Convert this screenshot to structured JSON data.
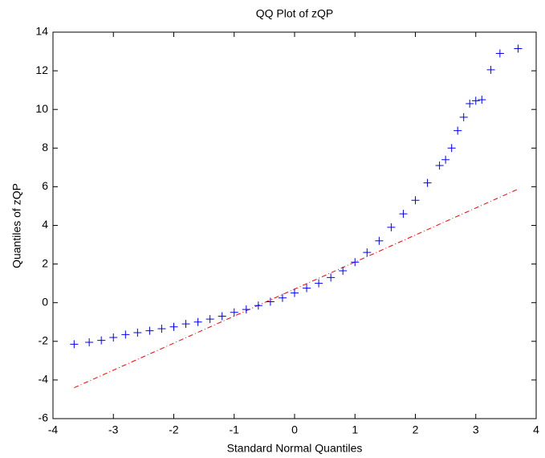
{
  "chart_data": {
    "type": "scatter",
    "title": "QQ Plot of zQP",
    "x_label": "Standard Normal Quantiles",
    "y_label": "Quantiles of zQP",
    "xlim": [
      -4,
      4
    ],
    "xticks": [
      -4,
      -3,
      -2,
      -1,
      0,
      1,
      2,
      3,
      4
    ],
    "ylim": [
      -6,
      14
    ],
    "yticks": [
      -6,
      -4,
      -2,
      0,
      2,
      4,
      6,
      8,
      10,
      12,
      14
    ],
    "grid": false,
    "series": [
      {
        "name": "zQP",
        "color": "#0000ff",
        "x": [
          -3.65,
          -3.4,
          -3.2,
          -3.0,
          -2.8,
          -2.6,
          -2.4,
          -2.2,
          -2.0,
          -1.8,
          -1.6,
          -1.4,
          -1.2,
          -1.0,
          -0.8,
          -0.6,
          -0.4,
          -0.2,
          0,
          0.2,
          0.4,
          0.6,
          0.8,
          1.0,
          1.2,
          1.4,
          1.6,
          1.8,
          2.0,
          2.2,
          2.4,
          2.5,
          2.6,
          2.7,
          2.8,
          2.9,
          3.0,
          3.1,
          3.25,
          3.4,
          3.7
        ],
        "values": [
          -2.15,
          -2.05,
          -1.95,
          -1.8,
          -1.65,
          -1.55,
          -1.45,
          -1.35,
          -1.25,
          -1.1,
          -1.0,
          -0.85,
          -0.7,
          -0.5,
          -0.35,
          -0.15,
          0.05,
          0.25,
          0.5,
          0.75,
          1.0,
          1.3,
          1.65,
          2.1,
          2.6,
          3.2,
          3.9,
          4.6,
          5.3,
          6.2,
          7.1,
          7.4,
          8.0,
          8.9,
          9.6,
          10.3,
          10.45,
          10.5,
          12.05,
          12.9,
          13.15
        ]
      }
    ],
    "reference_line": {
      "color": "#ff0000",
      "x": [
        -3.65,
        3.7
      ],
      "y": [
        -4.4,
        5.88
      ]
    }
  }
}
